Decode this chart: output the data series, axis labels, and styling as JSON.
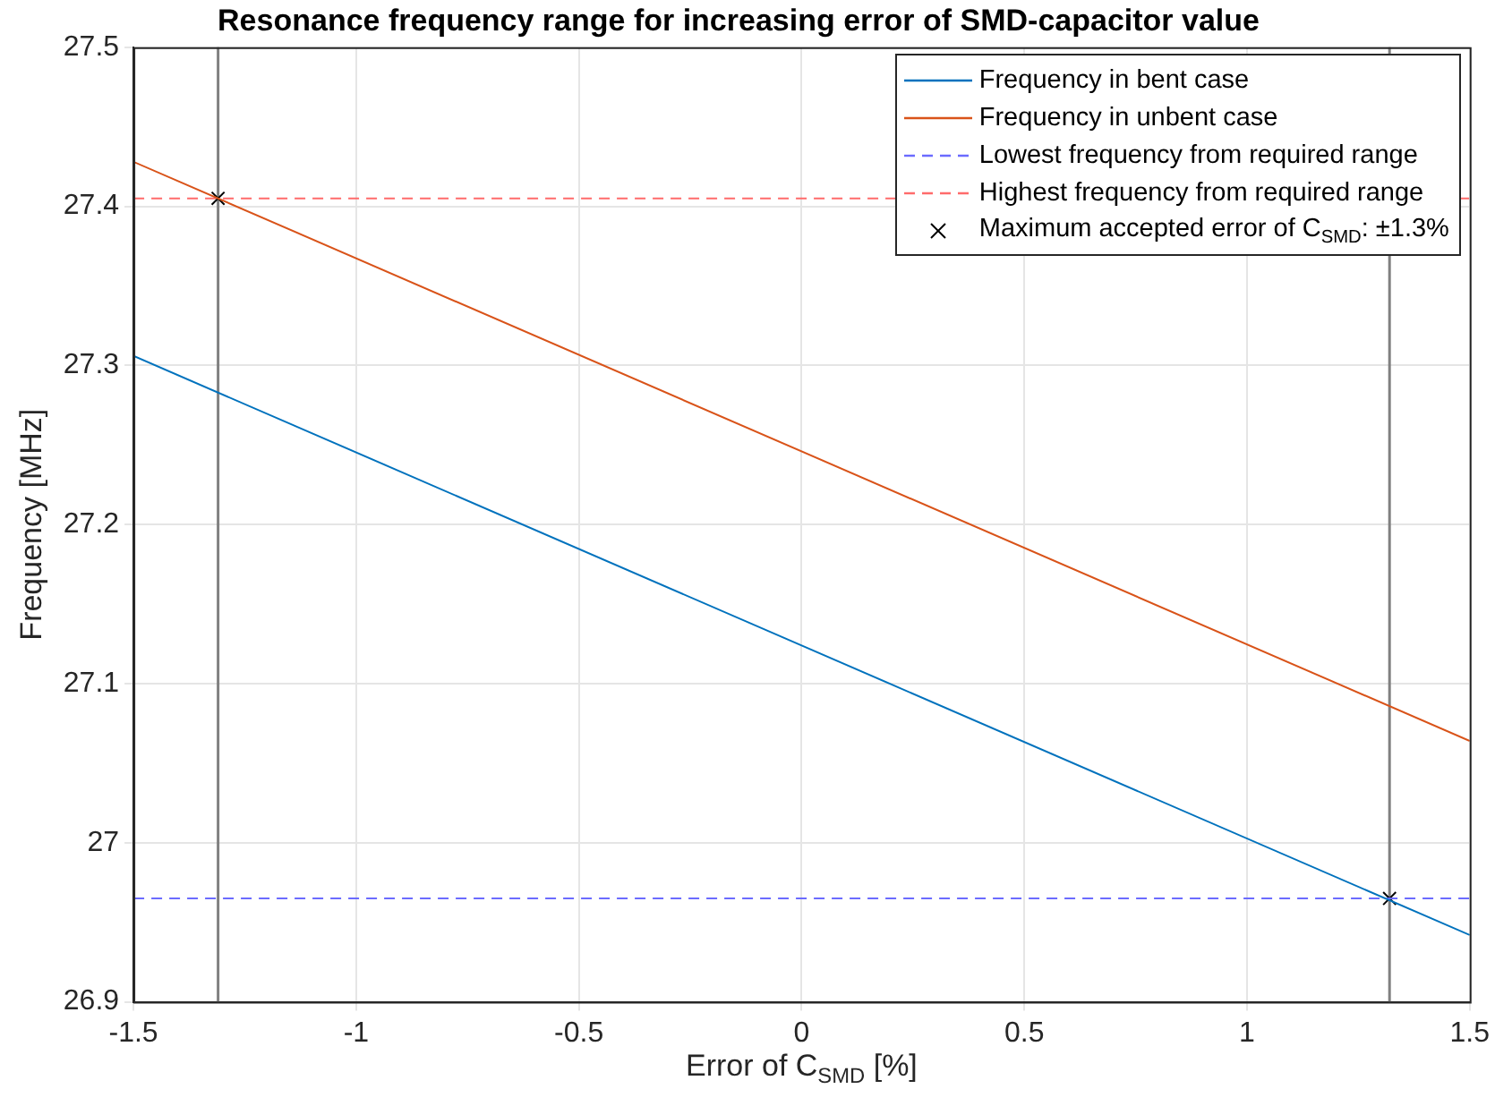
{
  "chart_data": {
    "type": "line",
    "title": "Resonance frequency range for increasing error of SMD-capacitor value",
    "xlabel": "Error of C$_{SMD}$ [%]",
    "ylabel": "Frequency [MHz]",
    "series": [
      {
        "name": "Frequency in bent case",
        "color": "#0072bd",
        "x": [
          -1.5,
          1.5
        ],
        "values": [
          27.306,
          26.942
        ]
      },
      {
        "name": "Frequency in unbent case",
        "color": "#d95319",
        "x": [
          -1.5,
          1.5
        ],
        "values": [
          27.428,
          27.064
        ]
      },
      {
        "name": "Lowest frequency from required range",
        "color": "#6b6bff",
        "x": [
          -1.5,
          1.5
        ],
        "values": [
          26.965,
          26.965
        ],
        "line_style": "dashed"
      },
      {
        "name": "Highest frequency from required range",
        "color": "#ff6b6b",
        "x": [
          -1.5,
          1.5
        ],
        "values": [
          27.405,
          27.405
        ],
        "line_style": "dashed"
      },
      {
        "name": "Maximum accepted error of C$_{SMD}$: ±1.3%",
        "type": "scatter",
        "color": "#000000",
        "x": [
          -1.31,
          1.32
        ],
        "values": [
          27.405,
          26.965
        ],
        "marker": "cross"
      }
    ],
    "ref_lines": [
      {
        "axis": "x",
        "value": -1.31,
        "color": "#808080"
      },
      {
        "axis": "x",
        "value": 1.32,
        "color": "#808080"
      }
    ],
    "xlim": [
      -1.5,
      1.5
    ],
    "xticks": [
      -1.5,
      -1,
      -0.5,
      0,
      0.5,
      1,
      1.5
    ],
    "ylim": [
      26.9,
      27.5
    ],
    "yticks": [
      26.9,
      27,
      27.1,
      27.2,
      27.3,
      27.4,
      27.5
    ],
    "grid": true,
    "legend": "top right",
    "marker": "none",
    "line_style": "solid"
  }
}
